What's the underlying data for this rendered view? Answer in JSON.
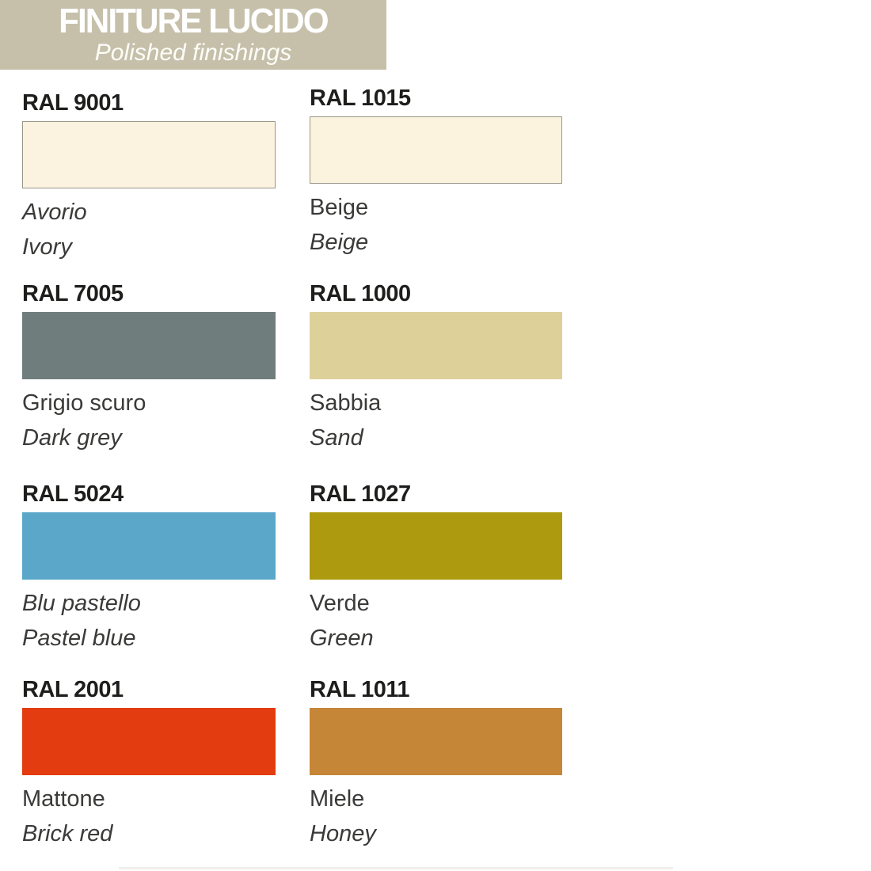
{
  "header": {
    "title": "FINITURE LUCIDO",
    "subtitle": "Polished finishings",
    "background_color": "#c6c0ab",
    "text_color": "#ffffff"
  },
  "swatches": [
    {
      "code": "RAL 9001",
      "name_it": "Avorio",
      "name_en": "Ivory",
      "color": "#fbf2e0",
      "bordered": true
    },
    {
      "code": "RAL 1015",
      "name_it": "Beige",
      "name_en": "Beige",
      "color": "#fcf3de",
      "bordered": true
    },
    {
      "code": "RAL 7005",
      "name_it": "Grigio scuro",
      "name_en": "Dark grey",
      "color": "#6f7e7c",
      "bordered": false
    },
    {
      "code": "RAL 1000",
      "name_it": "Sabbia",
      "name_en": "Sand",
      "color": "#ddd098",
      "bordered": false
    },
    {
      "code": "RAL 5024",
      "name_it": "Blu pastello",
      "name_en": "Pastel blue",
      "color": "#5aa7c9",
      "bordered": false
    },
    {
      "code": "RAL 1027",
      "name_it": "Verde",
      "name_en": "Green",
      "color": "#ad9a0e",
      "bordered": false
    },
    {
      "code": "RAL 2001",
      "name_it": "Mattone",
      "name_en": "Brick red",
      "color": "#e33c11",
      "bordered": false
    },
    {
      "code": "RAL 1011",
      "name_it": "Miele",
      "name_en": "Honey",
      "color": "#c58637",
      "bordered": false
    }
  ]
}
